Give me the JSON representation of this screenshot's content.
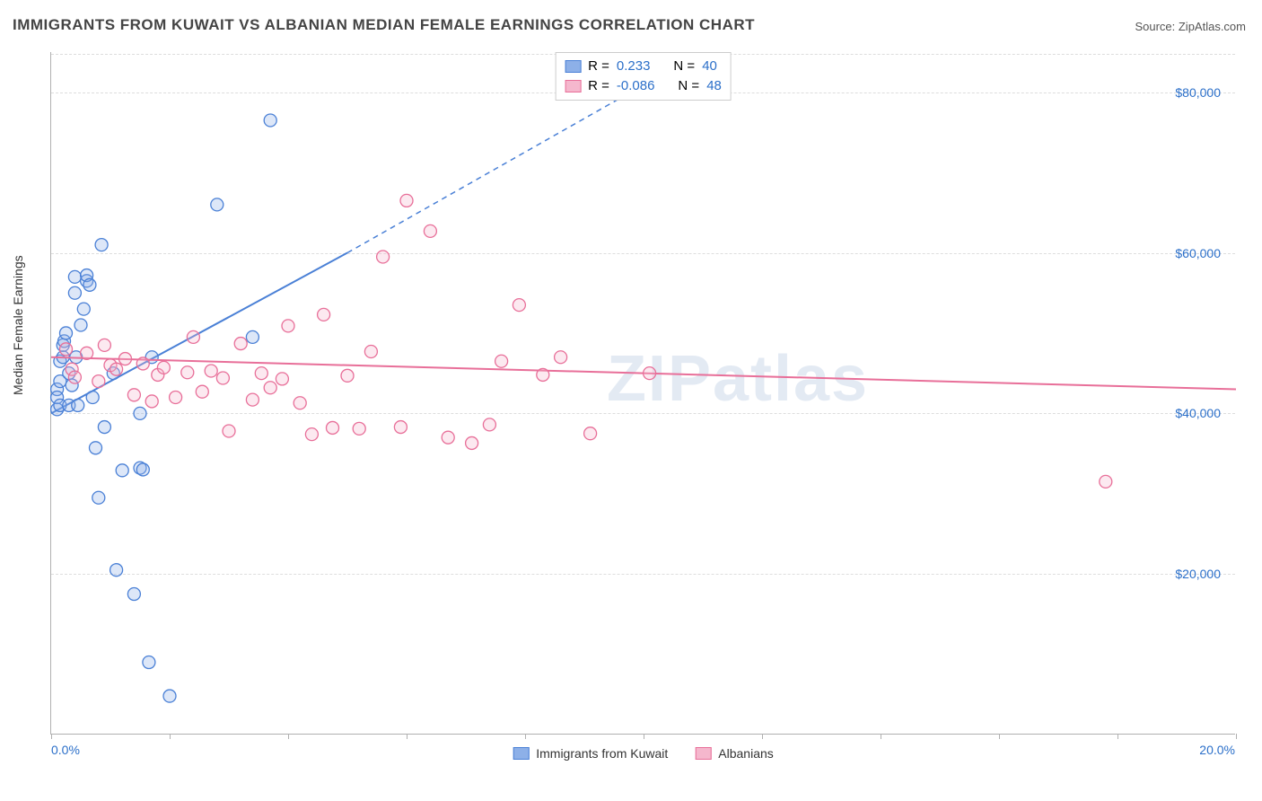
{
  "title": "IMMIGRANTS FROM KUWAIT VS ALBANIAN MEDIAN FEMALE EARNINGS CORRELATION CHART",
  "source_label": "Source: ",
  "source_name": "ZipAtlas.com",
  "ylabel": "Median Female Earnings",
  "watermark": "ZIPatlas",
  "chart": {
    "type": "scatter",
    "xlim": [
      0,
      20
    ],
    "ylim": [
      0,
      85000
    ],
    "xtick_labels": {
      "min": "0.0%",
      "max": "20.0%"
    },
    "xtick_positions_pct": [
      0,
      10,
      20,
      30,
      40,
      50,
      60,
      70,
      80,
      90,
      100
    ],
    "ytick_values": [
      20000,
      40000,
      60000,
      80000
    ],
    "ytick_labels": [
      "$20,000",
      "$40,000",
      "$60,000",
      "$80,000"
    ],
    "background_color": "#ffffff",
    "grid_color": "#dddddd",
    "axis_color": "#b0b0b0",
    "marker_radius": 7,
    "marker_fill_opacity": 0.3,
    "marker_stroke_width": 1.3,
    "trend_line_width": 2,
    "trend_dash": "6,5"
  },
  "series": [
    {
      "name": "Immigrants from Kuwait",
      "color_stroke": "#4a80d6",
      "color_fill": "#8db0e8",
      "r_label": "R = ",
      "r_value": " 0.233",
      "n_label": "N = ",
      "n_value": "40",
      "trend": {
        "x1": 0,
        "y1": 40000,
        "x2": 5,
        "y2": 60000,
        "x_dash_end": 10.5,
        "y_dash_end": 83000
      },
      "points": [
        [
          0.1,
          43000
        ],
        [
          0.1,
          40500
        ],
        [
          0.1,
          42000
        ],
        [
          0.15,
          44000
        ],
        [
          0.15,
          41000
        ],
        [
          0.15,
          46500
        ],
        [
          0.2,
          47000
        ],
        [
          0.2,
          48500
        ],
        [
          0.22,
          49000
        ],
        [
          0.25,
          50000
        ],
        [
          0.3,
          41000
        ],
        [
          0.3,
          45000
        ],
        [
          0.35,
          43500
        ],
        [
          0.4,
          55000
        ],
        [
          0.4,
          57000
        ],
        [
          0.42,
          47000
        ],
        [
          0.45,
          41000
        ],
        [
          0.5,
          51000
        ],
        [
          0.55,
          53000
        ],
        [
          0.6,
          56500
        ],
        [
          0.6,
          57200
        ],
        [
          0.65,
          56000
        ],
        [
          0.7,
          42000
        ],
        [
          0.75,
          35700
        ],
        [
          0.8,
          29500
        ],
        [
          0.85,
          61000
        ],
        [
          0.9,
          38300
        ],
        [
          1.05,
          45000
        ],
        [
          1.1,
          20500
        ],
        [
          1.2,
          32900
        ],
        [
          1.4,
          17500
        ],
        [
          1.5,
          40000
        ],
        [
          1.5,
          33200
        ],
        [
          1.55,
          33000
        ],
        [
          1.65,
          9000
        ],
        [
          1.7,
          47000
        ],
        [
          2.0,
          4800
        ],
        [
          2.8,
          66000
        ],
        [
          3.4,
          49500
        ],
        [
          3.7,
          76500
        ]
      ]
    },
    {
      "name": "Albanians",
      "color_stroke": "#e86f99",
      "color_fill": "#f5b7cd",
      "r_label": "R = ",
      "r_value": "-0.086",
      "n_label": "N = ",
      "n_value": "48",
      "trend": {
        "x1": 0,
        "y1": 47000,
        "x2": 20,
        "y2": 43000
      },
      "points": [
        [
          0.25,
          48000
        ],
        [
          0.35,
          45500
        ],
        [
          0.4,
          44500
        ],
        [
          0.6,
          47500
        ],
        [
          0.8,
          44000
        ],
        [
          0.9,
          48500
        ],
        [
          1.0,
          46000
        ],
        [
          1.1,
          45500
        ],
        [
          1.25,
          46800
        ],
        [
          1.4,
          42300
        ],
        [
          1.55,
          46200
        ],
        [
          1.7,
          41500
        ],
        [
          1.8,
          44800
        ],
        [
          1.9,
          45700
        ],
        [
          2.1,
          42000
        ],
        [
          2.3,
          45100
        ],
        [
          2.4,
          49500
        ],
        [
          2.55,
          42700
        ],
        [
          2.7,
          45300
        ],
        [
          2.9,
          44400
        ],
        [
          3.0,
          37800
        ],
        [
          3.2,
          48700
        ],
        [
          3.4,
          41700
        ],
        [
          3.55,
          45000
        ],
        [
          3.7,
          43200
        ],
        [
          3.9,
          44300
        ],
        [
          4.0,
          50900
        ],
        [
          4.2,
          41300
        ],
        [
          4.4,
          37400
        ],
        [
          4.6,
          52300
        ],
        [
          4.75,
          38200
        ],
        [
          5.0,
          44700
        ],
        [
          5.2,
          38100
        ],
        [
          5.4,
          47700
        ],
        [
          5.6,
          59500
        ],
        [
          5.9,
          38300
        ],
        [
          6.0,
          66500
        ],
        [
          6.4,
          62700
        ],
        [
          6.7,
          37000
        ],
        [
          7.1,
          36300
        ],
        [
          7.4,
          38600
        ],
        [
          7.6,
          46500
        ],
        [
          7.9,
          53500
        ],
        [
          8.3,
          44800
        ],
        [
          8.6,
          47000
        ],
        [
          9.1,
          37500
        ],
        [
          10.1,
          45000
        ],
        [
          17.8,
          31500
        ]
      ]
    }
  ]
}
